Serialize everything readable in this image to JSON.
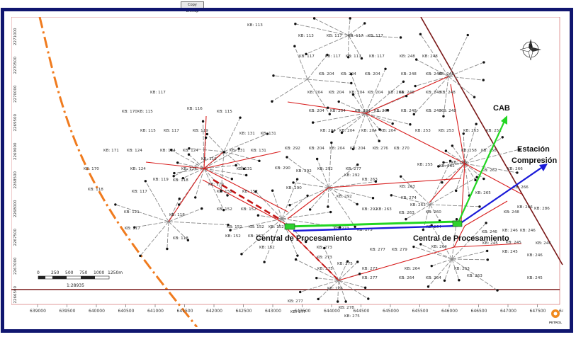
{
  "toolbar": {
    "copy_label": "Copy Bitmap"
  },
  "map": {
    "callouts": {
      "cab": "CAB",
      "estacion_line1": "Estación",
      "estacion_line2": "Compresión",
      "central_left": "Central de Procesamiento",
      "central_right": "Central de Procesamiento"
    },
    "scale_bar": {
      "labels": [
        "0",
        "250",
        "500",
        "750",
        "1000",
        "1250m"
      ],
      "ratio": "1:28935"
    },
    "x_ticks": [
      "639000",
      "639500",
      "640000",
      "640500",
      "641000",
      "641500",
      "642000",
      "642500",
      "643000",
      "643500",
      "644000",
      "644500",
      "645000",
      "645500",
      "646000",
      "646500",
      "647000",
      "647500",
      "648000"
    ],
    "y_ticks": [
      "2271000",
      "2270500",
      "2270000",
      "2269500",
      "2269000",
      "2268500",
      "2268000",
      "2267500",
      "2267000",
      "2266500"
    ],
    "logo_text": "PETROL",
    "colors": {
      "frame": "#10166f",
      "pipeline_red": "#d81e1e",
      "pipeline_green": "#22d622",
      "pipeline_blue": "#1a1ad8",
      "boundary_orange": "#f07b1e",
      "boundary_maroon": "#7a1818",
      "facility_green": "#2fd12f"
    },
    "well_labels": [
      "KB: 113",
      "KB: 113",
      "KB: 117",
      "KB: 117",
      "KB: 117",
      "KB: 117",
      "KB: 117",
      "KB: 117",
      "KB: 117",
      "KB: 248",
      "KB: 248",
      "KB: 204",
      "KB: 204",
      "KB: 204",
      "KB: 248",
      "KB: 248",
      "KB: 248",
      "KB: 204",
      "KB: 204",
      "KB: 204",
      "KB: 204",
      "KB: 204",
      "KB: 248",
      "KB: 248",
      "KB: 248",
      "KB: 204",
      "KB: 204",
      "KB: 204",
      "KB: 204",
      "KB: 248",
      "KB: 248",
      "KB: 248",
      "KB: 117",
      "KB: 116",
      "KB: 115",
      "KB: 170",
      "KB: 115",
      "KB: 131",
      "KB: 131",
      "KB: 204",
      "KB: 204",
      "KB: 204",
      "KB: 204",
      "KB: 253",
      "KB: 253",
      "KB: 253",
      "KB: 252",
      "KB: 115",
      "KB: 117",
      "KB: 119",
      "KB: 171",
      "KB: 124",
      "KB: 124",
      "KB: 124",
      "KB: 119",
      "KB: 131",
      "KB: 131",
      "KB: 292",
      "KB: 204",
      "KB: 204",
      "KB: 204",
      "KB: 276",
      "KB: 270",
      "KB: 258",
      "KB: 258",
      "KB: 170",
      "KB: 124",
      "KB: 124",
      "KB: 131",
      "KB: 290",
      "KB: 292",
      "KB: 277",
      "KB: 255",
      "KB: 262",
      "KB: 270",
      "KB: 262",
      "KB: 266",
      "KB: 118",
      "KB: 119",
      "KB: 170",
      "KB: 292",
      "KB: 292",
      "KB: 263",
      "KB: 263",
      "KB: 266",
      "KB: 118",
      "KB: 117",
      "KB: 152",
      "KB: 152",
      "KB: 290",
      "KB: 292",
      "KB: 274",
      "KB: 263",
      "KB: 265",
      "KB: 266",
      "KB: 121",
      "KB: 118",
      "KB: 152",
      "KB: 152",
      "KB: 292",
      "KB: 263",
      "KB: 263",
      "KB: 260",
      "KB: 248",
      "KB: 286",
      "KB: 117",
      "KB: 152",
      "KB: 152",
      "KB: 152",
      "KB: 273",
      "KB: 275",
      "KB: 264",
      "KB: 246",
      "KB: 246",
      "KB: 246",
      "KB: 118",
      "KB: 152",
      "KB: 152",
      "KB: 273",
      "KB: 277",
      "KB: 279",
      "KB: 264",
      "KB: 245",
      "KB: 245",
      "KB: 246",
      "KB: 152",
      "KB: 273",
      "KB: 275",
      "KB: 277",
      "KB: 264",
      "KB: 263",
      "KB: 245",
      "KB: 246",
      "KB: 275",
      "KB: 277",
      "KB: 264",
      "KB: 264",
      "KB: 263",
      "KB: 245",
      "KB: 277",
      "KB: 276",
      "KB: 278",
      "KB: 277",
      "KB: 275"
    ]
  }
}
